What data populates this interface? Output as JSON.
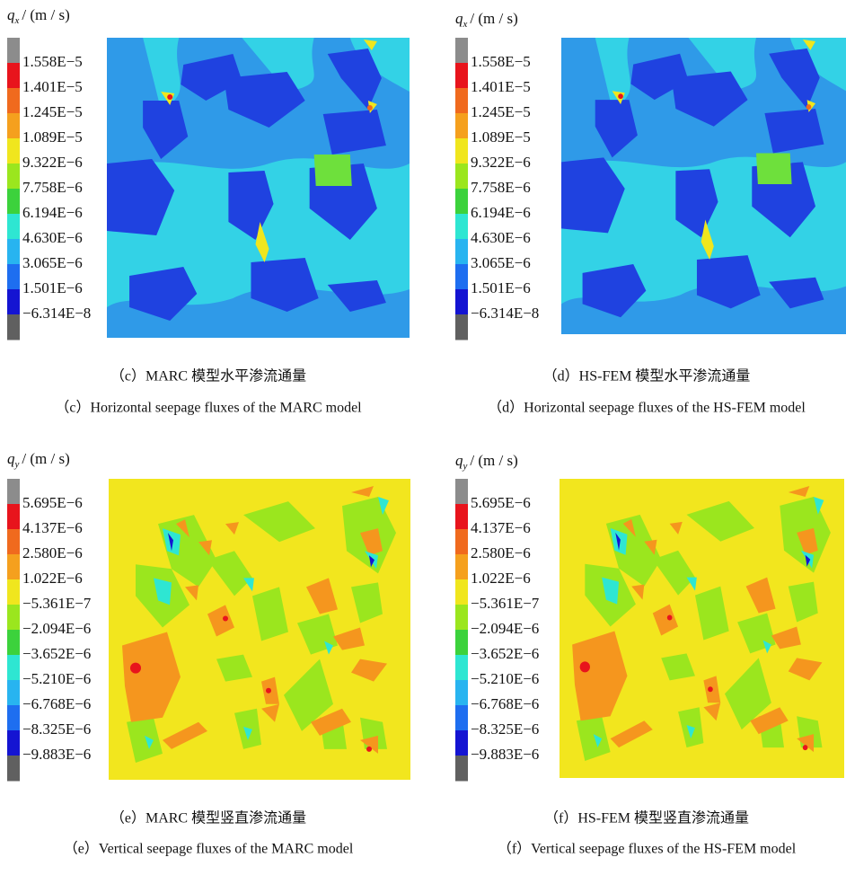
{
  "legend_colors": [
    "#8c8c8c",
    "#e8141c",
    "#f06a1e",
    "#f5a01e",
    "#f0e61e",
    "#9be61e",
    "#3cd23c",
    "#2ee6d2",
    "#28b4f0",
    "#1e6ef0",
    "#1414d2",
    "#606060"
  ],
  "panels": [
    {
      "symbol": "q",
      "subscript": "x",
      "unit": "/ (m / s)",
      "legend_labels": [
        "1.558E−5",
        "1.401E−5",
        "1.245E−5",
        "1.089E−5",
        "9.322E−6",
        "7.758E−6",
        "6.194E−6",
        "4.630E−6",
        "3.065E−6",
        "1.501E−6",
        "−6.314E−8"
      ],
      "caption_zh": "（c）MARC 模型水平渗流通量",
      "caption_en": "（c）Horizontal seepage fluxes of the MARC model"
    },
    {
      "symbol": "q",
      "subscript": "x",
      "unit": "/ (m / s)",
      "legend_labels": [
        "1.558E−5",
        "1.401E−5",
        "1.245E−5",
        "1.089E−5",
        "9.322E−6",
        "7.758E−6",
        "6.194E−6",
        "4.630E−6",
        "3.065E−6",
        "1.501E−6",
        "−6.314E−8"
      ],
      "caption_zh": "（d）HS-FEM 模型水平渗流通量",
      "caption_en": "（d）Horizontal seepage fluxes of the HS-FEM model"
    },
    {
      "symbol": "q",
      "subscript": "y",
      "unit": "/ (m / s)",
      "legend_labels": [
        "5.695E−6",
        "4.137E−6",
        "2.580E−6",
        "1.022E−6",
        "−5.361E−7",
        "−2.094E−6",
        "−3.652E−6",
        "−5.210E−6",
        "−6.768E−6",
        "−8.325E−6",
        "−9.883E−6"
      ],
      "caption_zh": "（e）MARC 模型竖直渗流通量",
      "caption_en": "（e）Vertical seepage fluxes of the MARC model"
    },
    {
      "symbol": "q",
      "subscript": "y",
      "unit": "/ (m / s)",
      "legend_labels": [
        "5.695E−6",
        "4.137E−6",
        "2.580E−6",
        "1.022E−6",
        "−5.361E−7",
        "−2.094E−6",
        "−3.652E−6",
        "−5.210E−6",
        "−6.768E−6",
        "−8.325E−6",
        "−9.883E−6"
      ],
      "caption_zh": "（f）HS-FEM 模型竖直渗流通量",
      "caption_en": "（f）Vertical seepage fluxes of the HS-FEM model"
    }
  ]
}
